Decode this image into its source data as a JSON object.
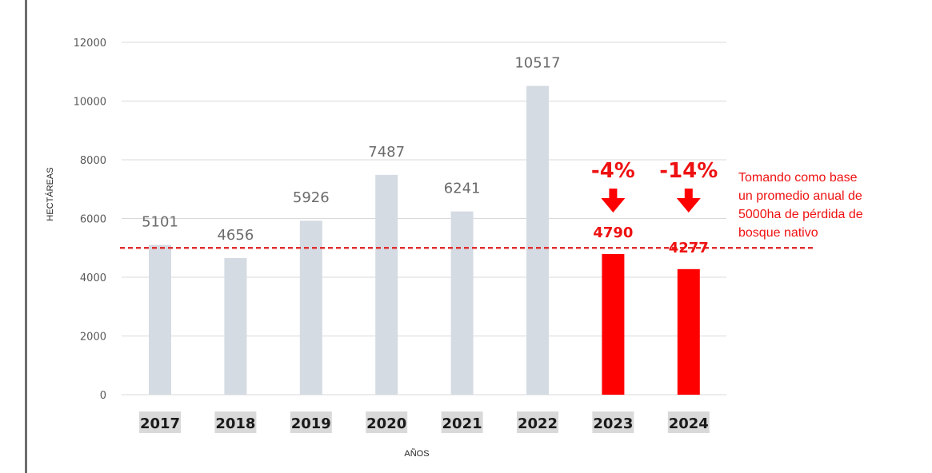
{
  "colors": {
    "bar": "#d5dbe3",
    "highlight": "#ff0000",
    "accent_text": "#ee1111",
    "grid": "#d9d9d9",
    "category_bg": "#d9d9d9",
    "reference_line": "#e03030",
    "left_border": "#6e6e6e"
  },
  "chart_data": {
    "type": "bar",
    "categories": [
      "2017",
      "2018",
      "2019",
      "2020",
      "2021",
      "2022",
      "2023",
      "2024"
    ],
    "values": [
      5101,
      4656,
      5926,
      7487,
      6241,
      10517,
      4790,
      4277
    ],
    "highlighted": [
      "2023",
      "2024"
    ],
    "xlabel": "AÑOS",
    "ylabel": "HECTÁREAS",
    "ylim": [
      0,
      12000
    ],
    "yticks": [
      0,
      2000,
      4000,
      6000,
      8000,
      10000,
      12000
    ],
    "grid": true,
    "reference_line": {
      "value": 5000,
      "style": "dashed"
    },
    "annotations": [
      {
        "category": "2023",
        "text": "-4%",
        "icon": "down-arrow-icon"
      },
      {
        "category": "2024",
        "text": "-14%",
        "icon": "down-arrow-icon"
      }
    ],
    "note": [
      "Tomando como base",
      "un promedio anual de",
      "5000ha de pérdida de",
      "bosque nativo"
    ]
  }
}
